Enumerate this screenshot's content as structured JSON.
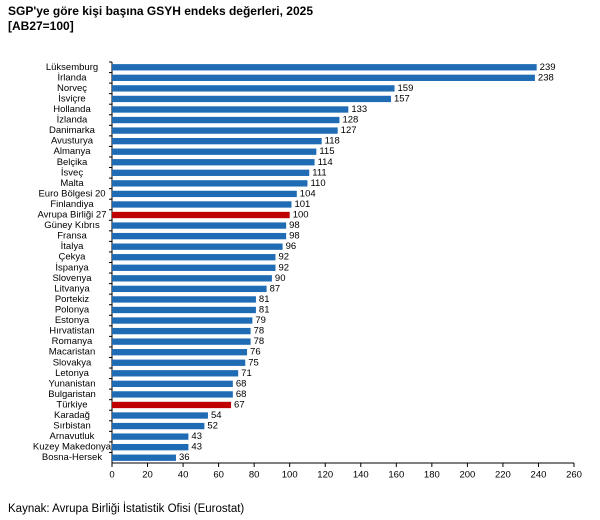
{
  "chart_data": {
    "type": "hbar",
    "title": "SGP'ye göre kişi başına GSYH endeks değerleri, 2025",
    "subtitle": "[AB27=100]",
    "source": "Kaynak: Avrupa Birliği İstatistik Ofisi (Eurostat)",
    "categories": [
      "Lüksemburg",
      "İrlanda",
      "Norveç",
      "İsviçre",
      "Hollanda",
      "İzlanda",
      "Danimarka",
      "Avusturya",
      "Almanya",
      "Belçika",
      "İsveç",
      "Malta",
      "Euro Bölgesi 20",
      "Finlandiya",
      "Avrupa Birliği 27",
      "Güney Kıbrıs",
      "Fransa",
      "İtalya",
      "Çekya",
      "İspanya",
      "Slovenya",
      "Litvanya",
      "Portekiz",
      "Polonya",
      "Estonya",
      "Hırvatistan",
      "Romanya",
      "Macaristan",
      "Slovakya",
      "Letonya",
      "Yunanistan",
      "Bulgaristan",
      "Türkiye",
      "Karadağ",
      "Sırbistan",
      "Arnavutluk",
      "Kuzey Makedonya",
      "Bosna-Hersek"
    ],
    "values": [
      239,
      238,
      159,
      157,
      133,
      128,
      127,
      118,
      115,
      114,
      111,
      110,
      104,
      101,
      100,
      98,
      98,
      96,
      92,
      92,
      90,
      87,
      81,
      81,
      79,
      78,
      78,
      76,
      75,
      71,
      68,
      68,
      67,
      54,
      52,
      43,
      43,
      36
    ],
    "colors": [
      "#1f6cb5",
      "#1f6cb5",
      "#1f6cb5",
      "#1f6cb5",
      "#1f6cb5",
      "#1f6cb5",
      "#1f6cb5",
      "#1f6cb5",
      "#1f6cb5",
      "#1f6cb5",
      "#1f6cb5",
      "#1f6cb5",
      "#1f6cb5",
      "#1f6cb5",
      "#c00000",
      "#1f6cb5",
      "#1f6cb5",
      "#1f6cb5",
      "#1f6cb5",
      "#1f6cb5",
      "#1f6cb5",
      "#1f6cb5",
      "#1f6cb5",
      "#1f6cb5",
      "#1f6cb5",
      "#1f6cb5",
      "#1f6cb5",
      "#1f6cb5",
      "#1f6cb5",
      "#1f6cb5",
      "#1f6cb5",
      "#1f6cb5",
      "#c00000",
      "#1f6cb5",
      "#1f6cb5",
      "#1f6cb5",
      "#1f6cb5",
      "#1f6cb5"
    ],
    "xlim": [
      0,
      260
    ],
    "xticks": [
      0,
      20,
      40,
      60,
      80,
      100,
      120,
      140,
      160,
      180,
      200,
      220,
      240,
      260
    ],
    "grid": false
  }
}
